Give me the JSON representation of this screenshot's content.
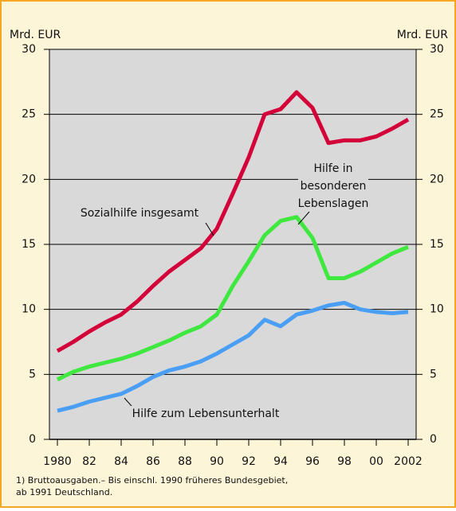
{
  "chart_data": {
    "type": "line",
    "ylabel": "Mrd. EUR",
    "y2label": "Mrd. EUR",
    "x": [
      1980,
      1981,
      1982,
      1983,
      1984,
      1985,
      1986,
      1987,
      1988,
      1989,
      1990,
      1991,
      1992,
      1993,
      1994,
      1995,
      1996,
      1997,
      1998,
      1999,
      2000,
      2001,
      2002
    ],
    "xlim": [
      1979.5,
      2002.5
    ],
    "xticks": [
      {
        "value": 1980,
        "label": "1980"
      },
      {
        "value": 1982,
        "label": "82"
      },
      {
        "value": 1984,
        "label": "84"
      },
      {
        "value": 1986,
        "label": "86"
      },
      {
        "value": 1988,
        "label": "88"
      },
      {
        "value": 1990,
        "label": "90"
      },
      {
        "value": 1992,
        "label": "92"
      },
      {
        "value": 1994,
        "label": "94"
      },
      {
        "value": 1996,
        "label": "96"
      },
      {
        "value": 1998,
        "label": "98"
      },
      {
        "value": 2000,
        "label": "00"
      },
      {
        "value": 2002,
        "label": "2002"
      }
    ],
    "ylim": [
      0,
      30
    ],
    "yticks": [
      0,
      5,
      10,
      15,
      20,
      25,
      30
    ],
    "y2lim": [
      0,
      30
    ],
    "y2ticks": [
      0,
      5,
      10,
      15,
      20,
      25,
      30
    ],
    "grid": true,
    "series": [
      {
        "name": "Sozialhilfe insgesamt",
        "color": "#d4003a",
        "values": [
          6.8,
          7.5,
          8.3,
          9.0,
          9.6,
          10.6,
          11.8,
          12.9,
          13.8,
          14.7,
          16.2,
          18.9,
          21.7,
          25.0,
          25.4,
          26.7,
          25.5,
          22.8,
          23.0,
          23.0,
          23.3,
          23.9,
          24.6
        ]
      },
      {
        "name": [
          "Hilfe in",
          "besonderen",
          "Lebenslagen"
        ],
        "color": "#3ee83e",
        "values": [
          4.6,
          5.2,
          5.6,
          5.9,
          6.2,
          6.6,
          7.1,
          7.6,
          8.2,
          8.7,
          9.6,
          11.8,
          13.7,
          15.7,
          16.8,
          17.1,
          15.5,
          12.4,
          12.4,
          12.9,
          13.6,
          14.3,
          14.8
        ]
      },
      {
        "name": "Hilfe zum Lebensunterhalt",
        "color": "#4a9ff5",
        "values": [
          2.2,
          2.5,
          2.9,
          3.2,
          3.5,
          4.1,
          4.8,
          5.3,
          5.6,
          6.0,
          6.6,
          7.3,
          8.0,
          9.2,
          8.7,
          9.6,
          9.9,
          10.3,
          10.5,
          10.0,
          9.8,
          9.7,
          9.8
        ]
      }
    ],
    "footnote": [
      "1) Bruttoausgaben.– Bis einschl. 1990  früheres Bundesgebiet,",
      "ab 1991 Deutschland."
    ]
  }
}
